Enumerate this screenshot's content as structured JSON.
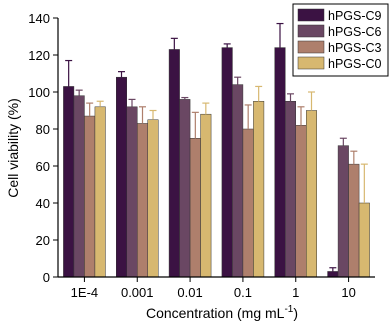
{
  "chart_data": {
    "type": "bar",
    "xlabel": "Concentration (mg mL",
    "xlabel_superscript": "-1",
    "xlabel_suffix": ")",
    "ylabel": "Cell viability (%)",
    "ylim": [
      0,
      140
    ],
    "yticks": [
      0,
      20,
      40,
      60,
      80,
      100,
      120,
      140
    ],
    "categories": [
      "1E-4",
      "0.001",
      "0.01",
      "0.1",
      "1",
      "10"
    ],
    "legend_position": "top-right",
    "series": [
      {
        "name": "hPGS-C9",
        "color": "#3b1243",
        "values": [
          103,
          108,
          123,
          124,
          124,
          3
        ],
        "errors": [
          14,
          3,
          6,
          2,
          13,
          2
        ]
      },
      {
        "name": "hPGS-C6",
        "color": "#6a4763",
        "values": [
          98,
          92,
          96,
          104,
          95,
          71
        ],
        "errors": [
          3,
          4,
          1,
          4,
          4,
          4
        ]
      },
      {
        "name": "hPGS-C3",
        "color": "#ae7f6c",
        "values": [
          87,
          83,
          75,
          80,
          82,
          61
        ],
        "errors": [
          7,
          9,
          14,
          13,
          10,
          7
        ]
      },
      {
        "name": "hPGS-C0",
        "color": "#d7b870",
        "values": [
          92,
          85,
          88,
          95,
          90,
          40
        ],
        "errors": [
          3,
          5,
          6,
          8,
          10,
          21
        ]
      }
    ]
  }
}
